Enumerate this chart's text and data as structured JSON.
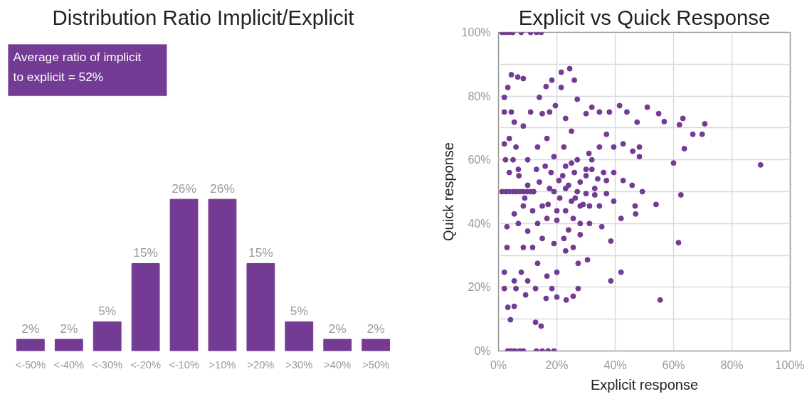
{
  "chart_data": [
    {
      "type": "bar",
      "title": "Distribution Ratio Implicit/Explicit",
      "annotations": [
        "Average ratio of implicit to explicit = 52%"
      ],
      "categories": [
        "<-50%",
        "<-40%",
        "<-30%",
        "<-20%",
        "<-10%",
        ">10%",
        ">20%",
        ">30%",
        ">40%",
        ">50%"
      ],
      "values": [
        2,
        2,
        5,
        15,
        26,
        26,
        15,
        5,
        2,
        2
      ],
      "value_labels": [
        "2%",
        "2%",
        "5%",
        "15%",
        "26%",
        "26%",
        "15%",
        "5%",
        "2%",
        "2%"
      ],
      "color": "#733b93"
    },
    {
      "type": "scatter",
      "title": "Explicit vs Quick Response",
      "xlabel": "Explicit response",
      "ylabel": "Quick response",
      "color": "#733b93",
      "marker": "circle",
      "grid": true,
      "xlim": [
        0,
        100
      ],
      "ylim": [
        0,
        100
      ],
      "xticks": [
        {
          "value": 0,
          "label": "0%"
        },
        {
          "value": 20,
          "label": "20%"
        },
        {
          "value": 40,
          "label": "40%"
        },
        {
          "value": 60,
          "label": "60%"
        },
        {
          "value": 80,
          "label": "80%"
        },
        {
          "value": 100,
          "label": "100%"
        }
      ],
      "yticks": [
        {
          "value": 0,
          "label": "0%"
        },
        {
          "value": 10,
          "label": null
        },
        {
          "value": 20,
          "label": "20%"
        },
        {
          "value": 30,
          "label": null
        },
        {
          "value": 40,
          "label": "40%"
        },
        {
          "value": 50,
          "label": null
        },
        {
          "value": 60,
          "label": "60%"
        },
        {
          "value": 70,
          "label": null
        },
        {
          "value": 80,
          "label": "80%"
        },
        {
          "value": 90,
          "label": null
        },
        {
          "value": 100,
          "label": "100%"
        }
      ],
      "x": [
        1.2,
        2.4,
        3.7,
        4.9,
        7.8,
        11,
        13,
        14.6,
        3.2,
        4.4,
        5.6,
        7.3,
        8.5,
        13,
        15,
        17,
        19,
        1.2,
        2.5,
        3.7,
        5,
        6,
        7.3,
        8.5,
        9.8,
        11,
        12,
        89.8,
        55.4,
        61.7,
        62.5,
        60,
        63.7,
        70.7,
        69.8,
        66.6,
        63.2,
        62,
        54,
        56.8,
        51,
        54.9,
        24.4,
        21.5,
        26,
        27,
        18.3,
        16.3,
        14,
        4.4,
        6.6,
        8.5,
        3.2,
        2,
        2,
        4.4,
        5.4,
        8.5,
        11,
        15,
        17.5,
        19.5,
        21.5,
        23,
        25,
        30,
        32,
        34.6,
        38,
        41.5,
        44,
        47.5,
        2.4,
        2,
        3.7,
        6,
        3.7,
        6.8,
        10,
        13.4,
        16.6,
        19,
        22.4,
        25,
        27,
        30,
        32,
        34.6,
        37,
        39.5,
        42.7,
        46,
        48.3,
        39.5,
        37,
        33,
        30,
        26.3,
        23,
        20.7,
        17.5,
        15,
        11.7,
        8.5,
        5.4,
        2.9,
        6.8,
        10,
        13.4,
        16.6,
        20,
        23,
        25.6,
        28,
        31.2,
        34.6,
        37,
        39.5,
        42,
        35.4,
        31.2,
        28,
        25.6,
        22.4,
        19,
        15,
        11.7,
        8.5,
        2.9,
        2,
        5.4,
        7.8,
        10,
        13.4,
        16.6,
        20,
        23,
        27.3,
        30.5,
        2,
        6,
        9.3,
        12.7,
        16.3,
        18.3,
        20,
        23.2,
        25.6,
        27.3,
        3.2,
        5.4,
        4.1,
        12.7,
        14.6,
        49.3,
        46.8,
        47,
        38.5,
        42,
        38.5,
        45.8,
        42.7,
        48.3,
        22,
        24,
        26,
        28,
        30,
        32,
        34,
        27,
        25,
        21,
        19,
        29,
        33,
        36,
        31,
        23,
        18,
        16,
        14,
        12,
        10,
        9,
        7,
        5,
        13,
        20,
        24,
        28,
        17
      ],
      "values": [
        100,
        100,
        100,
        100,
        100,
        100,
        100,
        100,
        0,
        0,
        0,
        0,
        0,
        0,
        0,
        0,
        0,
        50,
        50,
        50,
        50,
        50,
        50,
        50,
        50,
        50,
        50,
        58.4,
        16,
        34,
        49,
        59,
        63.5,
        71.3,
        68,
        68,
        73,
        71,
        46,
        72,
        76.5,
        74.5,
        88.6,
        87.5,
        85,
        79,
        85,
        83,
        79.6,
        86.7,
        86,
        85.5,
        82.7,
        79.6,
        75,
        75,
        71.8,
        70.6,
        75,
        74.5,
        75,
        77,
        82.7,
        73,
        69,
        74.5,
        76.5,
        75,
        75,
        77,
        75,
        71.8,
        60,
        65,
        66.7,
        64,
        56,
        57,
        60,
        64,
        66.7,
        61,
        64,
        59,
        60,
        57,
        60,
        64,
        68,
        64,
        65,
        62.7,
        64,
        56,
        53.5,
        51,
        49.4,
        48,
        51,
        53.5,
        51,
        45.5,
        44,
        45.5,
        43,
        39,
        40,
        37.6,
        40,
        41.6,
        44,
        44,
        41.6,
        45.5,
        45.5,
        45.5,
        49.4,
        47,
        41.6,
        39,
        40,
        36.5,
        32.5,
        35.3,
        33.7,
        35.3,
        32.5,
        32.5,
        32.5,
        24.7,
        22,
        24.7,
        22,
        27.5,
        23.5,
        24.7,
        31.4,
        27.5,
        28.6,
        19.6,
        19.6,
        17.6,
        19.6,
        16.5,
        19.6,
        16.9,
        16,
        17.2,
        19.6,
        13.7,
        14,
        9.8,
        9,
        7.8,
        50,
        45.5,
        43,
        34.5,
        24.7,
        22,
        52,
        53.5,
        61,
        55,
        52,
        56,
        53,
        55,
        57,
        54,
        50,
        47,
        48,
        50,
        46,
        49,
        56,
        62,
        58,
        56,
        58,
        53,
        50,
        52,
        48,
        55,
        60,
        57,
        41,
        38,
        40,
        46
      ]
    }
  ]
}
